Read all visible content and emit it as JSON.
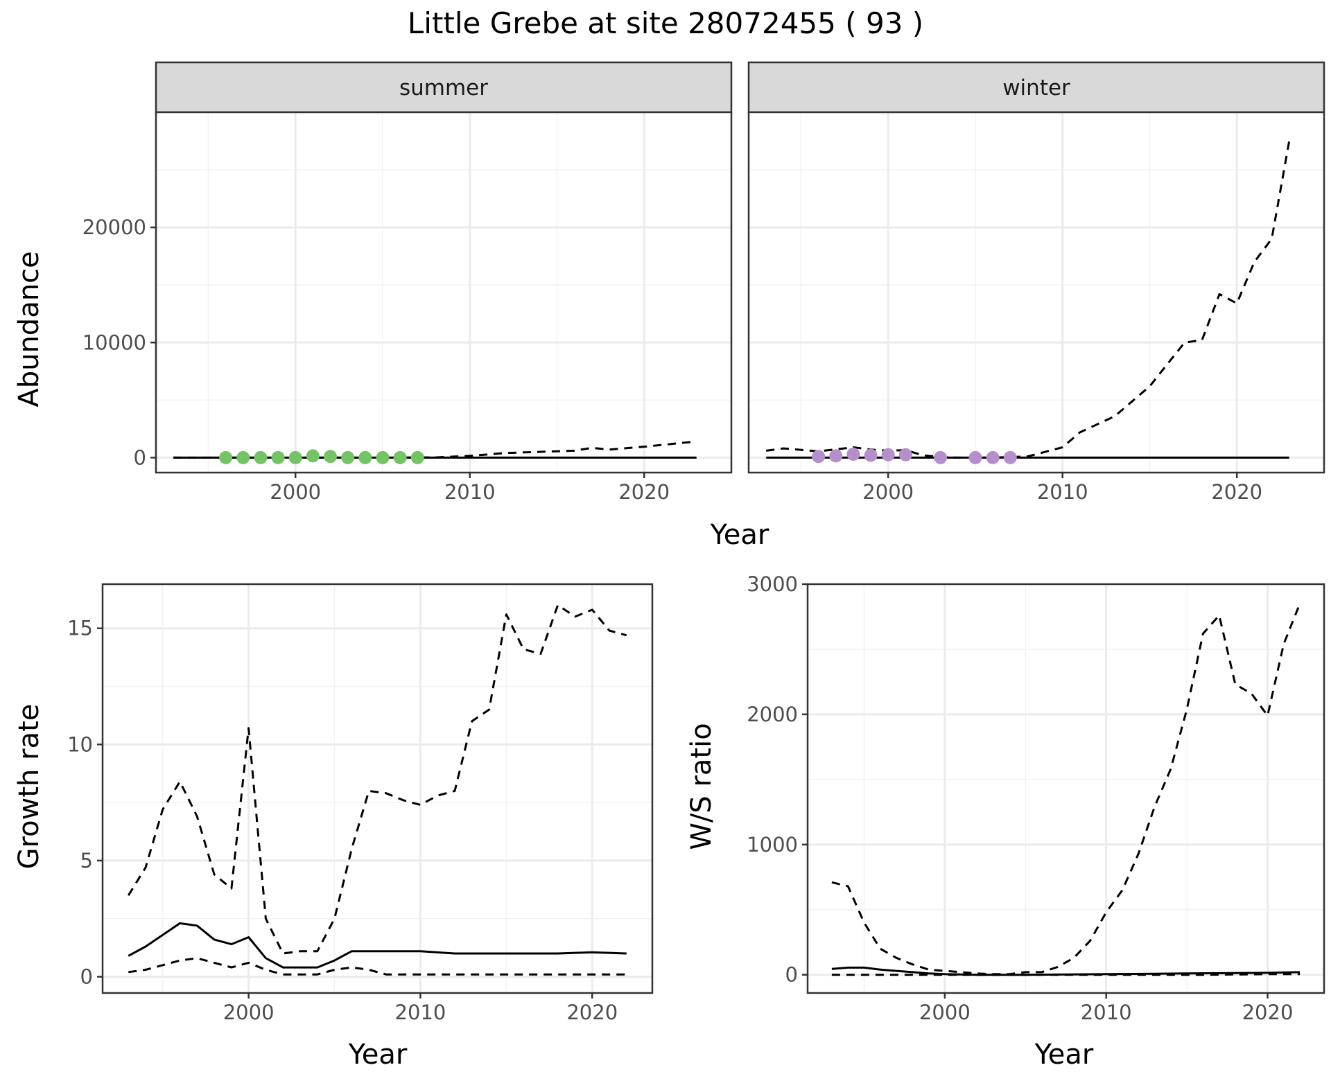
{
  "title": "Little Grebe at site 28072455 ( 93 )",
  "chart_data": [
    {
      "type": "line",
      "id": "abundance",
      "xlabel": "Year",
      "ylabel": "Abundance",
      "xlim": [
        1992,
        2025
      ],
      "ylim": [
        -1300,
        30000
      ],
      "x_ticks": [
        2000,
        2010,
        2020
      ],
      "y_ticks": [
        0,
        10000,
        20000
      ],
      "grid": true,
      "facets": [
        {
          "label": "summer",
          "point_color": "#74c365",
          "series": [
            {
              "name": "",
              "style": "solid",
              "x": [
                1993,
                2023
              ],
              "values": [
                0,
                0
              ]
            },
            {
              "name": "",
              "style": "dashed",
              "x": [
                1993,
                1995,
                1998,
                2000,
                2005,
                2008,
                2010,
                2012,
                2014,
                2016,
                2017,
                2018,
                2020,
                2023
              ],
              "values": [
                0,
                0,
                0,
                0,
                0,
                20,
                150,
                400,
                500,
                600,
                850,
                700,
                950,
                1400
              ]
            }
          ],
          "points": {
            "x": [
              1996,
              1997,
              1998,
              1999,
              2000,
              2001,
              2002,
              2003,
              2004,
              2005,
              2006,
              2007
            ],
            "values": [
              0,
              0,
              0,
              0,
              0,
              150,
              100,
              0,
              0,
              0,
              0,
              0
            ]
          }
        },
        {
          "label": "winter",
          "point_color": "#b58fcb",
          "series": [
            {
              "name": "",
              "style": "solid",
              "x": [
                1993,
                2023
              ],
              "values": [
                0,
                0
              ]
            },
            {
              "name": "",
              "style": "dashed",
              "x": [
                1993,
                1994,
                1996,
                1998,
                1999,
                2000,
                2001,
                2002,
                2003,
                2004,
                2006,
                2008,
                2009,
                2010,
                2011,
                2013,
                2015,
                2017,
                2018,
                2019,
                2020,
                2021,
                2022,
                2023
              ],
              "values": [
                600,
                800,
                550,
                900,
                700,
                600,
                650,
                200,
                50,
                0,
                0,
                100,
                500,
                900,
                2200,
                3600,
                6200,
                10000,
                10200,
                14200,
                13400,
                17000,
                19000,
                27500
              ]
            }
          ],
          "points": {
            "x": [
              1996,
              1997,
              1998,
              1999,
              2000,
              2001,
              2003,
              2005,
              2006,
              2007
            ],
            "values": [
              100,
              150,
              300,
              200,
              250,
              250,
              0,
              0,
              0,
              0
            ]
          }
        }
      ]
    },
    {
      "type": "line",
      "id": "growth-rate",
      "xlabel": "Year",
      "ylabel": "Growth rate",
      "xlim": [
        1991.5,
        2023.5
      ],
      "ylim": [
        -0.7,
        16.9
      ],
      "x_ticks": [
        2000,
        2010,
        2020
      ],
      "y_ticks": [
        0,
        5,
        10,
        15
      ],
      "grid": true,
      "series": [
        {
          "name": "",
          "style": "dashed",
          "x": [
            1993,
            1994,
            1995,
            1996,
            1997,
            1998,
            1999,
            2000,
            2001,
            2002,
            2003,
            2004,
            2005,
            2006,
            2007,
            2008,
            2009,
            2010,
            2011,
            2012,
            2013,
            2014,
            2015,
            2016,
            2017,
            2018,
            2019,
            2020,
            2021,
            2022
          ],
          "values": [
            3.5,
            4.7,
            7.2,
            8.4,
            6.9,
            4.4,
            3.8,
            10.7,
            2.5,
            1.0,
            1.1,
            1.1,
            2.5,
            5.5,
            8.0,
            7.9,
            7.6,
            7.4,
            7.8,
            8.0,
            11.0,
            11.5,
            15.6,
            14.1,
            13.9,
            16.0,
            15.5,
            15.8,
            14.9,
            14.7
          ]
        },
        {
          "name": "",
          "style": "solid",
          "x": [
            1993,
            1994,
            1995,
            1996,
            1997,
            1998,
            1999,
            2000,
            2001,
            2002,
            2003,
            2004,
            2005,
            2006,
            2007,
            2008,
            2010,
            2012,
            2014,
            2016,
            2018,
            2020,
            2022
          ],
          "values": [
            0.9,
            1.3,
            1.8,
            2.3,
            2.2,
            1.6,
            1.4,
            1.7,
            0.8,
            0.4,
            0.4,
            0.4,
            0.7,
            1.1,
            1.1,
            1.1,
            1.1,
            1.0,
            1.0,
            1.0,
            1.0,
            1.05,
            1.0
          ]
        },
        {
          "name": "",
          "style": "dashed",
          "x": [
            1993,
            1994,
            1995,
            1996,
            1997,
            1998,
            1999,
            2000,
            2001,
            2002,
            2003,
            2004,
            2005,
            2006,
            2007,
            2008,
            2010,
            2014,
            2018,
            2022
          ],
          "values": [
            0.2,
            0.3,
            0.5,
            0.7,
            0.8,
            0.6,
            0.4,
            0.6,
            0.3,
            0.1,
            0.1,
            0.1,
            0.3,
            0.4,
            0.3,
            0.1,
            0.1,
            0.1,
            0.1,
            0.1
          ]
        }
      ]
    },
    {
      "type": "line",
      "id": "ws-ratio",
      "xlabel": "Year",
      "ylabel": "W/S ratio",
      "xlim": [
        1991.5,
        2023.5
      ],
      "ylim": [
        -140,
        3000
      ],
      "x_ticks": [
        2000,
        2010,
        2020
      ],
      "y_ticks": [
        0,
        1000,
        2000,
        3000
      ],
      "grid": true,
      "series": [
        {
          "name": "",
          "style": "dashed",
          "x": [
            1993,
            1994,
            1995,
            1996,
            1997,
            1998,
            1999,
            2000,
            2001,
            2002,
            2003,
            2004,
            2005,
            2006,
            2007,
            2008,
            2009,
            2010,
            2011,
            2012,
            2013,
            2014,
            2015,
            2016,
            2017,
            2018,
            2019,
            2020,
            2021,
            2022
          ],
          "values": [
            710,
            680,
            400,
            200,
            130,
            80,
            40,
            30,
            20,
            10,
            5,
            5,
            20,
            20,
            60,
            130,
            260,
            480,
            650,
            930,
            1290,
            1580,
            2040,
            2620,
            2760,
            2230,
            2160,
            1990,
            2540,
            2850
          ]
        },
        {
          "name": "",
          "style": "solid",
          "x": [
            1993,
            1994,
            1995,
            1996,
            1997,
            1998,
            1999,
            2000,
            2002,
            2005,
            2010,
            2015,
            2020,
            2022
          ],
          "values": [
            45,
            55,
            55,
            40,
            30,
            20,
            10,
            5,
            0,
            0,
            5,
            10,
            15,
            20
          ]
        },
        {
          "name": "",
          "style": "dashed",
          "x": [
            1993,
            1996,
            2000,
            2004,
            2008,
            2012,
            2016,
            2020,
            2022
          ],
          "values": [
            0,
            0,
            0,
            0,
            0,
            0,
            0,
            5,
            5
          ]
        }
      ]
    }
  ]
}
